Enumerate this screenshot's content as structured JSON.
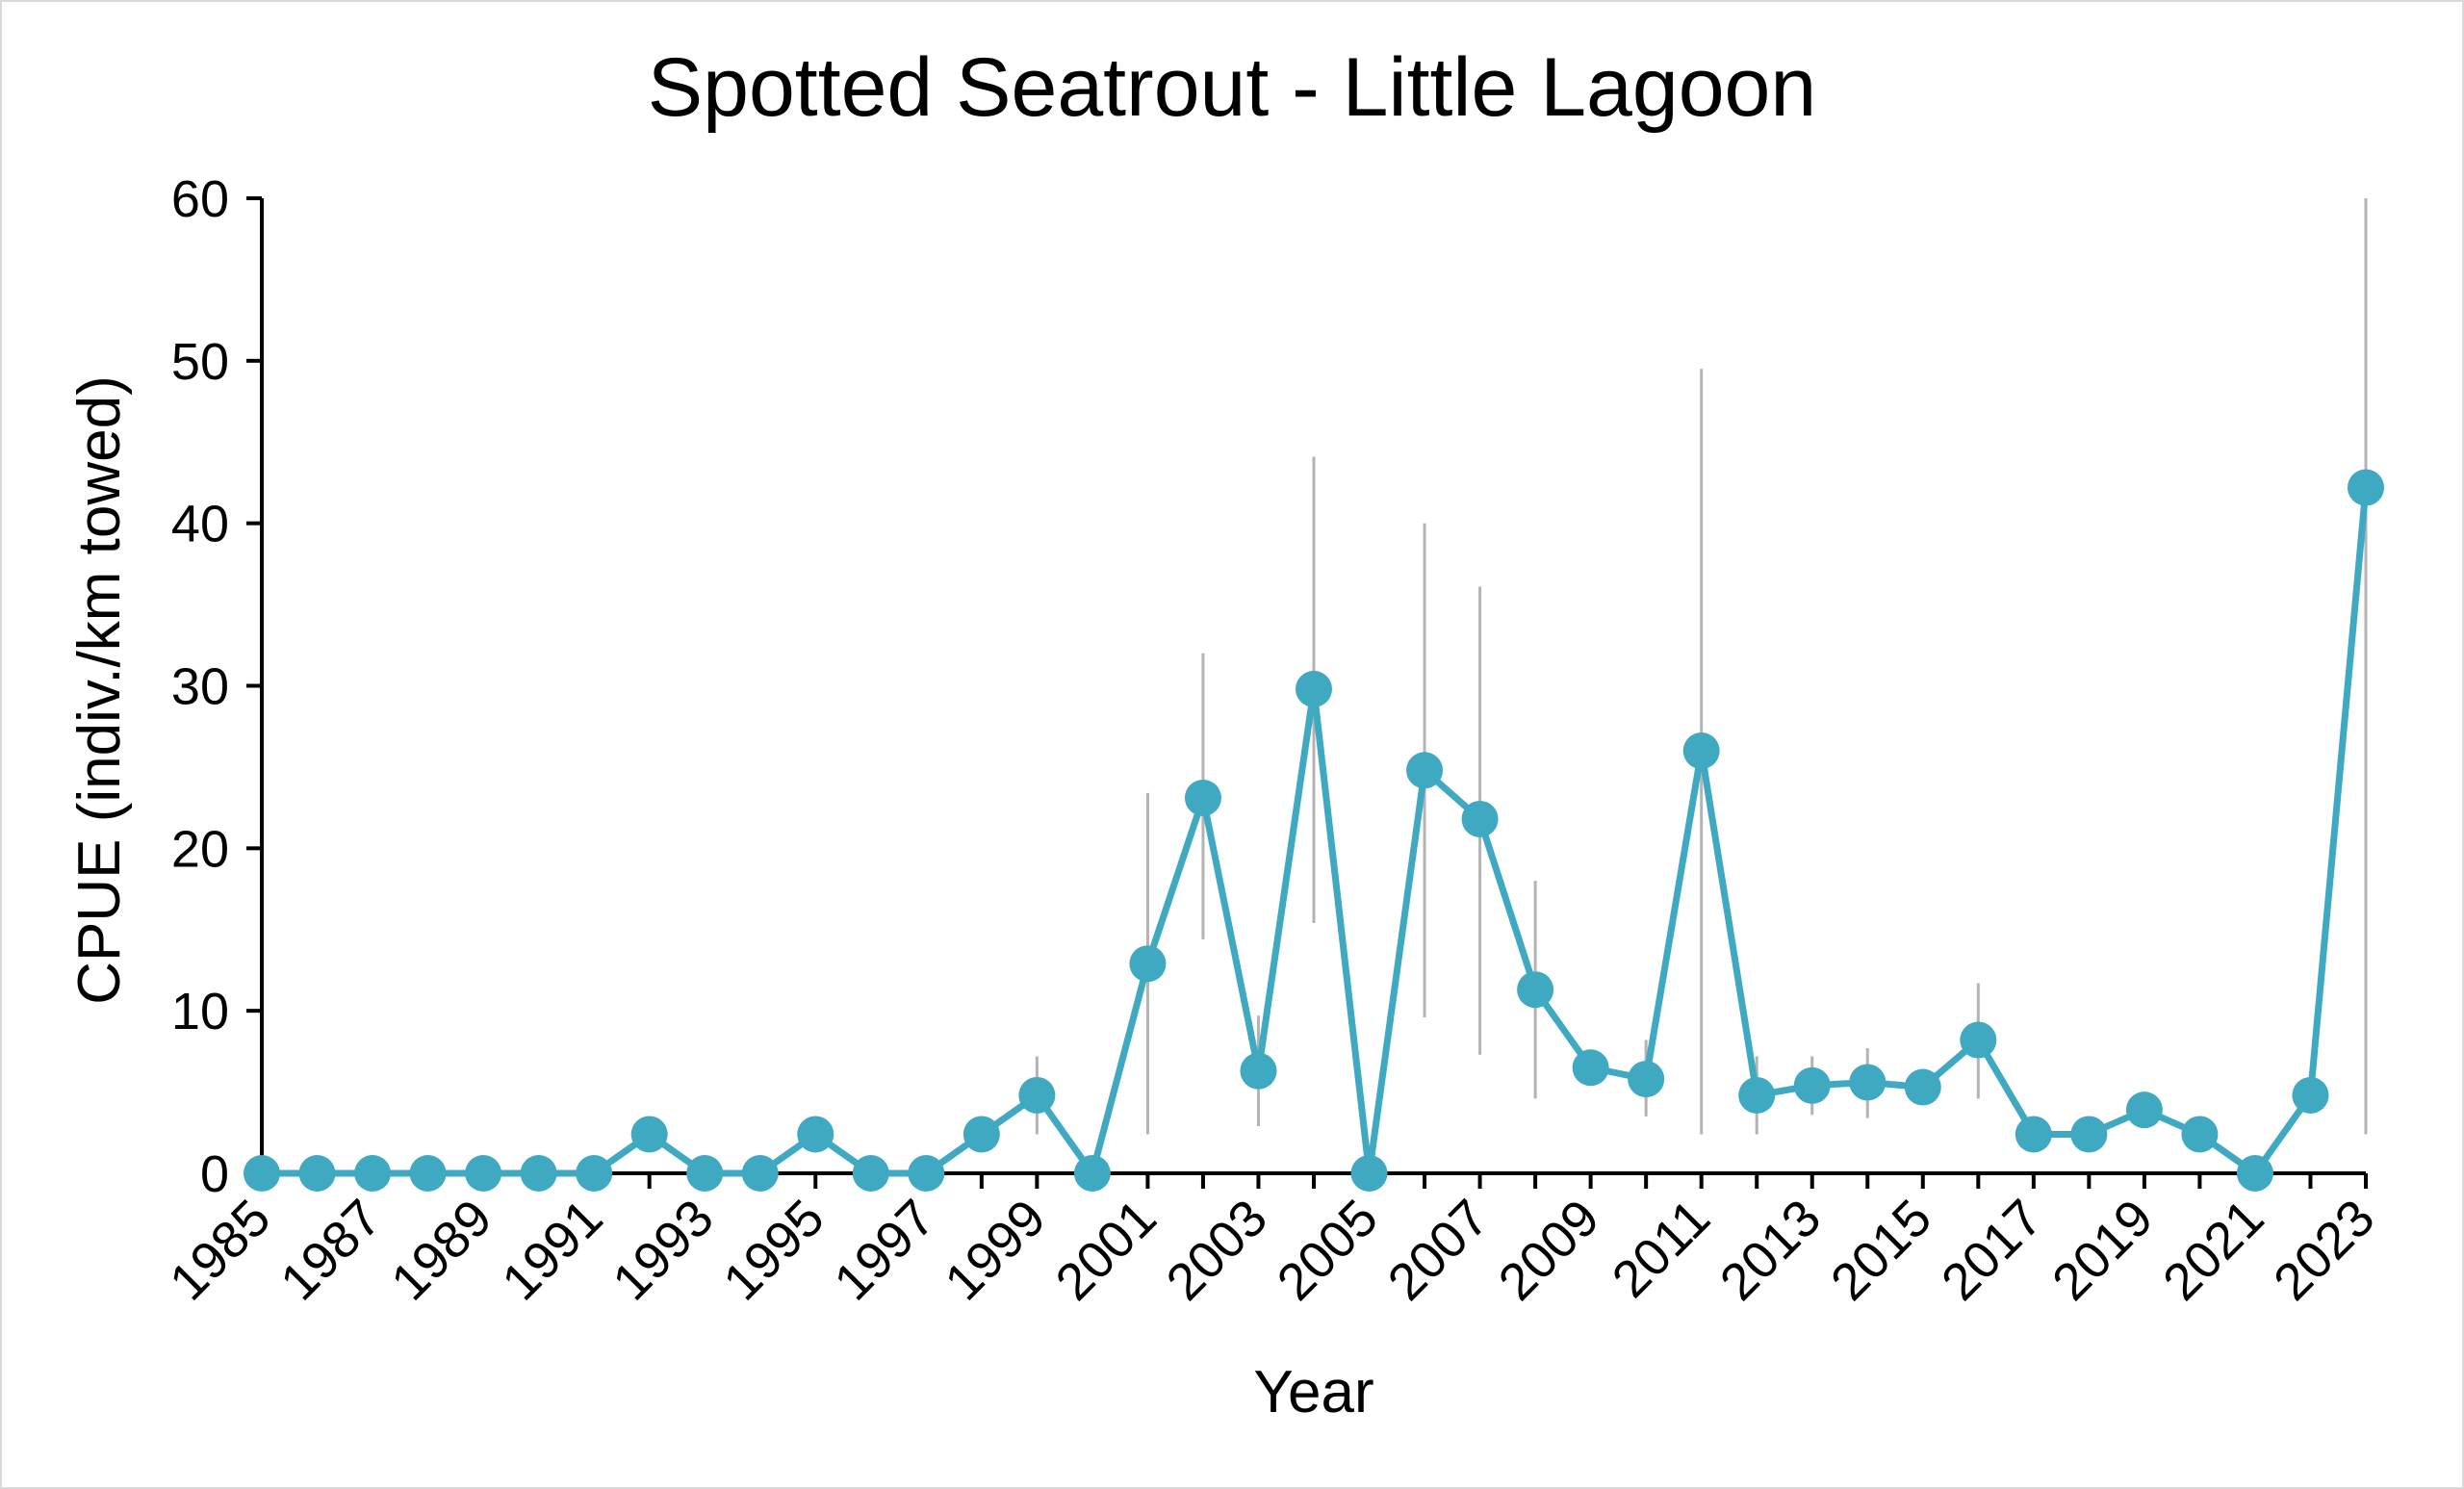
{
  "chart_data": {
    "type": "line",
    "title": "Spotted Seatrout - Little Lagoon",
    "xlabel": "Year",
    "ylabel": "CPUE (indiv./km towed)",
    "ylim": [
      0,
      60
    ],
    "yticks": [
      0,
      10,
      20,
      30,
      40,
      50,
      60
    ],
    "xlim": [
      1985,
      2023
    ],
    "xtick_labels": [
      "1985",
      "1987",
      "1989",
      "1991",
      "1993",
      "1995",
      "1997",
      "1999",
      "2001",
      "2003",
      "2005",
      "2007",
      "2009",
      "2011",
      "2013",
      "2015",
      "2017",
      "2019",
      "2021",
      "2023"
    ],
    "grid": false,
    "legend": "none",
    "series_color": "#3fa9c2",
    "error_bar_color": "#b3b3b3",
    "series": [
      {
        "x": [
          1985,
          1986,
          1987,
          1988,
          1989,
          1990,
          1991,
          1992,
          1993,
          1994,
          1995,
          1996,
          1997,
          1998,
          1999,
          2000,
          2001,
          2002,
          2003,
          2004,
          2005,
          2006,
          2007,
          2008,
          2009,
          2010,
          2011,
          2012,
          2013,
          2014,
          2015,
          2016,
          2017,
          2018,
          2019,
          2020,
          2021,
          2022,
          2023
        ],
        "values": [
          0,
          0,
          0,
          0,
          0,
          0,
          0,
          2.4,
          0,
          0,
          2.4,
          0,
          0,
          2.4,
          4.8,
          0,
          12.9,
          23.1,
          6.3,
          29.8,
          0,
          24.8,
          21.8,
          11.3,
          6.5,
          5.8,
          26.0,
          4.8,
          5.4,
          5.6,
          5.3,
          8.2,
          2.4,
          2.4,
          3.9,
          2.4,
          0,
          4.8,
          42.2
        ],
        "err_low": [
          0,
          0,
          0,
          0,
          0,
          0,
          0,
          0,
          0,
          0,
          0,
          0,
          0,
          0,
          2.4,
          0,
          2.4,
          14.4,
          2.9,
          15.4,
          0,
          9.6,
          7.3,
          4.6,
          6.5,
          3.5,
          2.4,
          2.4,
          3.6,
          3.4,
          5.3,
          4.6,
          2.4,
          2.4,
          3.9,
          2.4,
          0,
          4.8,
          2.4
        ],
        "err_high": [
          0,
          0,
          0,
          0,
          0,
          0,
          0,
          0,
          0,
          0,
          0,
          0,
          0,
          0,
          7.2,
          0,
          23.4,
          32.0,
          9.7,
          44.1,
          0,
          40.0,
          36.1,
          18.0,
          6.5,
          8.2,
          49.5,
          7.2,
          7.2,
          7.7,
          5.3,
          11.7,
          2.4,
          2.4,
          3.9,
          2.4,
          0,
          4.8,
          60.0
        ]
      }
    ]
  }
}
